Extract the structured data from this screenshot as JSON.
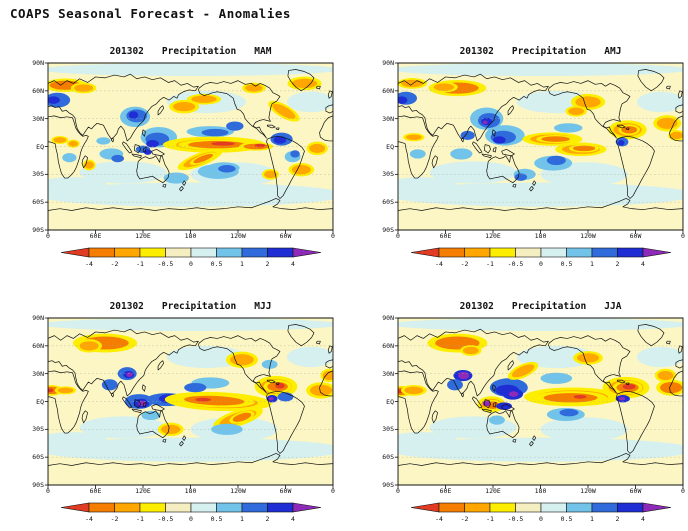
{
  "page_title": "COAPS Seasonal Forecast - Anomalies",
  "panels": [
    {
      "year_month": "201302",
      "variable": "Precipitation",
      "season": "MAM"
    },
    {
      "year_month": "201302",
      "variable": "Precipitation",
      "season": "AMJ"
    },
    {
      "year_month": "201302",
      "variable": "Precipitation",
      "season": "MJJ"
    },
    {
      "year_month": "201302",
      "variable": "Precipitation",
      "season": "JJA"
    }
  ],
  "axes": {
    "lat_labels": [
      "90N",
      "60N",
      "30N",
      "EQ",
      "30S",
      "60S",
      "90S"
    ],
    "lon_labels": [
      "0",
      "60E",
      "120E",
      "180",
      "120W",
      "60W",
      "0"
    ]
  },
  "colorbar": {
    "tick_labels": [
      "-4",
      "-2",
      "-1",
      "-0.5",
      "0",
      "0.5",
      "1",
      "2",
      "4"
    ],
    "segment_colors": [
      "#f57d00",
      "#ffa700",
      "#fdee00",
      "#f4eec0",
      "#d5f0ee",
      "#72c3ea",
      "#2f6bdb",
      "#1f2ed4"
    ],
    "left_arrow_color": "#e23b24",
    "right_arrow_color": "#8d2bb8",
    "level_colors": {
      "-4": "#e23b24",
      "-2": "#f57d00",
      "-1": "#ffa700",
      "-0.5": "#fdee00",
      "0-": "#fbf6c3",
      "0+": "#d5f0ee",
      "0.5": "#72c3ea",
      "1": "#2f6bdb",
      "2": "#1f2ed4",
      "4": "#8d2bb8"
    },
    "background_color": "#fbf6c3"
  },
  "chart_data": [
    {
      "type": "heatmap",
      "title": "201302 Precipitation MAM",
      "season": "MAM",
      "lon_range": [
        0,
        360
      ],
      "lat_range": [
        -90,
        90
      ],
      "contour_levels": [
        -4,
        -2,
        -1,
        -0.5,
        0,
        0.5,
        1,
        2,
        4
      ],
      "anomaly_blobs": [
        [
          180,
          -52,
          195,
          13,
          "0+"
        ],
        [
          235,
          -30,
          55,
          13,
          "0+"
        ],
        [
          95,
          -28,
          55,
          12,
          "0+"
        ],
        [
          30,
          -42,
          45,
          9,
          "0+"
        ],
        [
          200,
          48,
          50,
          12,
          "0+"
        ],
        [
          332,
          48,
          30,
          11,
          "0+"
        ],
        [
          180,
          83,
          190,
          7,
          "0+"
        ],
        [
          300,
          -52,
          60,
          8,
          "0+"
        ],
        [
          215,
          -27,
          26,
          8,
          "0.5"
        ],
        [
          162,
          -34,
          16,
          6,
          "0.5"
        ],
        [
          12,
          50,
          16,
          8,
          "1"
        ],
        [
          7,
          50,
          8,
          4,
          "2"
        ],
        [
          22,
          66,
          20,
          5,
          "-2"
        ],
        [
          45,
          63,
          12,
          4,
          "-1"
        ],
        [
          110,
          32,
          19,
          11,
          "0.5"
        ],
        [
          112,
          33,
          13,
          7,
          "1"
        ],
        [
          108,
          34,
          6,
          4,
          "2"
        ],
        [
          140,
          10,
          23,
          11,
          "0.5"
        ],
        [
          138,
          8,
          15,
          7,
          "1"
        ],
        [
          132,
          3,
          8,
          4,
          "2"
        ],
        [
          120,
          -3,
          9,
          4,
          "1"
        ],
        [
          126,
          -6,
          5,
          3,
          "2"
        ],
        [
          80,
          -8,
          15,
          6,
          "0.5"
        ],
        [
          88,
          -13,
          8,
          4,
          "1"
        ],
        [
          70,
          6,
          9,
          4,
          "0.5"
        ],
        [
          205,
          16,
          30,
          6,
          "0.5"
        ],
        [
          211,
          15,
          17,
          4,
          "1"
        ],
        [
          236,
          22,
          11,
          5,
          "1"
        ],
        [
          222,
          -23,
          20,
          6,
          "0.5"
        ],
        [
          226,
          -24,
          11,
          4,
          "1"
        ],
        [
          210,
          2,
          48,
          6,
          "-1"
        ],
        [
          213,
          2,
          36,
          4,
          "-2"
        ],
        [
          221,
          3,
          15,
          2,
          "-4"
        ],
        [
          263,
          0,
          16,
          3,
          "-2"
        ],
        [
          268,
          1,
          7,
          2,
          "-4"
        ],
        [
          192,
          -14,
          22,
          5,
          "-1",
          -18
        ],
        [
          196,
          -13,
          13,
          3,
          "-2",
          -18
        ],
        [
          172,
          43,
          14,
          5,
          "-1"
        ],
        [
          197,
          51,
          16,
          4,
          "-1"
        ],
        [
          298,
          38,
          16,
          5,
          "-1",
          25
        ],
        [
          324,
          68,
          16,
          5,
          "-1"
        ],
        [
          260,
          63,
          11,
          4,
          "-1"
        ],
        [
          295,
          8,
          14,
          7,
          "1"
        ],
        [
          293,
          7,
          8,
          4,
          "2"
        ],
        [
          309,
          -11,
          10,
          6,
          "0.5"
        ],
        [
          312,
          -8,
          6,
          4,
          "1"
        ],
        [
          320,
          -25,
          12,
          5,
          "-1"
        ],
        [
          281,
          -30,
          8,
          4,
          "-1"
        ],
        [
          340,
          -2,
          10,
          5,
          "-1"
        ],
        [
          15,
          7,
          8,
          3,
          "-1"
        ],
        [
          32,
          3,
          6,
          3,
          "-1"
        ],
        [
          27,
          -12,
          9,
          5,
          "0.5"
        ],
        [
          52,
          -20,
          6,
          4,
          "-1"
        ]
      ]
    },
    {
      "type": "heatmap",
      "title": "201302 Precipitation AMJ",
      "season": "AMJ",
      "lon_range": [
        0,
        360
      ],
      "lat_range": [
        -90,
        90
      ],
      "contour_levels": [
        -4,
        -2,
        -1,
        -0.5,
        0,
        0.5,
        1,
        2,
        4
      ],
      "anomaly_blobs": [
        [
          180,
          -52,
          195,
          13,
          "0+"
        ],
        [
          235,
          -30,
          55,
          13,
          "0+"
        ],
        [
          95,
          -28,
          55,
          12,
          "0+"
        ],
        [
          30,
          -42,
          45,
          9,
          "0+"
        ],
        [
          200,
          48,
          50,
          12,
          "0+"
        ],
        [
          332,
          48,
          30,
          11,
          "0+"
        ],
        [
          180,
          83,
          190,
          7,
          "0+"
        ],
        [
          300,
          -52,
          60,
          8,
          "0+"
        ],
        [
          75,
          63,
          27,
          6,
          "-2"
        ],
        [
          58,
          64,
          13,
          4,
          "-1"
        ],
        [
          18,
          68,
          14,
          4,
          "-1"
        ],
        [
          10,
          52,
          14,
          7,
          "1"
        ],
        [
          5,
          50,
          7,
          4,
          "2"
        ],
        [
          112,
          30,
          21,
          12,
          "0.5"
        ],
        [
          115,
          28,
          14,
          8,
          "1"
        ],
        [
          112,
          27,
          7,
          4,
          "2"
        ],
        [
          110,
          26,
          3,
          2,
          "4"
        ],
        [
          135,
          12,
          25,
          11,
          "0.5"
        ],
        [
          133,
          10,
          16,
          7,
          "1"
        ],
        [
          128,
          7,
          8,
          4,
          "2"
        ],
        [
          88,
          12,
          9,
          5,
          "1"
        ],
        [
          80,
          -8,
          14,
          6,
          "0.5"
        ],
        [
          195,
          8,
          28,
          5,
          "-1"
        ],
        [
          199,
          8,
          18,
          3,
          "-2"
        ],
        [
          231,
          -3,
          24,
          5,
          "-1"
        ],
        [
          235,
          -2,
          14,
          3,
          "-2"
        ],
        [
          196,
          -18,
          24,
          8,
          "0.5"
        ],
        [
          200,
          -15,
          12,
          5,
          "1"
        ],
        [
          215,
          20,
          18,
          5,
          "0.5"
        ],
        [
          240,
          48,
          16,
          6,
          "-1"
        ],
        [
          225,
          38,
          10,
          4,
          "-1"
        ],
        [
          290,
          18,
          18,
          7,
          "-1"
        ],
        [
          292,
          18,
          10,
          4,
          "-2"
        ],
        [
          283,
          5,
          8,
          5,
          "1"
        ],
        [
          282,
          4,
          4,
          3,
          "2"
        ],
        [
          340,
          25,
          13,
          6,
          "-1"
        ],
        [
          352,
          12,
          8,
          4,
          "-1"
        ],
        [
          20,
          10,
          10,
          3,
          "-1"
        ],
        [
          25,
          -8,
          10,
          5,
          "0.5"
        ],
        [
          160,
          -30,
          14,
          6,
          "0.5"
        ],
        [
          155,
          -33,
          8,
          4,
          "1"
        ]
      ]
    },
    {
      "type": "heatmap",
      "title": "201302 Precipitation MJJ",
      "season": "MJJ",
      "lon_range": [
        0,
        360
      ],
      "lat_range": [
        -90,
        90
      ],
      "contour_levels": [
        -4,
        -2,
        -1,
        -0.5,
        0,
        0.5,
        1,
        2,
        4
      ],
      "anomaly_blobs": [
        [
          180,
          -52,
          195,
          13,
          "0+"
        ],
        [
          235,
          -30,
          55,
          13,
          "0+"
        ],
        [
          95,
          -28,
          55,
          12,
          "0+"
        ],
        [
          30,
          -42,
          45,
          9,
          "0+"
        ],
        [
          200,
          48,
          50,
          12,
          "0+"
        ],
        [
          332,
          48,
          30,
          11,
          "0+"
        ],
        [
          180,
          83,
          190,
          7,
          "0+"
        ],
        [
          300,
          -52,
          60,
          8,
          "0+"
        ],
        [
          72,
          63,
          30,
          7,
          "-2"
        ],
        [
          52,
          60,
          12,
          5,
          "-1"
        ],
        [
          100,
          30,
          12,
          7,
          "1"
        ],
        [
          102,
          29,
          7,
          4,
          "2"
        ],
        [
          103,
          29,
          4,
          2.5,
          "4"
        ],
        [
          78,
          18,
          10,
          6,
          "1"
        ],
        [
          115,
          0,
          18,
          8,
          "1"
        ],
        [
          118,
          -2,
          10,
          5,
          "2"
        ],
        [
          119,
          -2,
          5,
          3,
          "4"
        ],
        [
          150,
          2,
          26,
          7,
          "1"
        ],
        [
          155,
          3,
          15,
          5,
          "2"
        ],
        [
          215,
          0,
          50,
          7,
          "-1",
          2
        ],
        [
          210,
          1,
          38,
          5,
          "-2",
          2
        ],
        [
          196,
          2,
          10,
          2,
          "-4"
        ],
        [
          240,
          -18,
          24,
          6,
          "-1",
          -15
        ],
        [
          245,
          -17,
          12,
          4,
          "-2",
          -15
        ],
        [
          205,
          20,
          24,
          6,
          "0.5"
        ],
        [
          186,
          15,
          14,
          5,
          "1"
        ],
        [
          226,
          -30,
          20,
          6,
          "0.5"
        ],
        [
          288,
          16,
          20,
          8,
          "-1"
        ],
        [
          290,
          16,
          13,
          5,
          "-2"
        ],
        [
          293,
          17,
          6,
          3,
          "-4"
        ],
        [
          283,
          3,
          7,
          4,
          "2"
        ],
        [
          282,
          3,
          3,
          2,
          "4"
        ],
        [
          300,
          5,
          10,
          5,
          "1"
        ],
        [
          345,
          12,
          14,
          6,
          "-1"
        ],
        [
          355,
          28,
          8,
          5,
          "-1"
        ],
        [
          5,
          12,
          10,
          4,
          "-2"
        ],
        [
          3,
          12,
          4,
          2,
          "-4"
        ],
        [
          22,
          12,
          10,
          3,
          "-1"
        ],
        [
          130,
          -15,
          12,
          5,
          "0.5"
        ],
        [
          155,
          -30,
          12,
          5,
          "-1"
        ],
        [
          245,
          45,
          15,
          6,
          "-1"
        ],
        [
          280,
          40,
          10,
          5,
          "0.5"
        ]
      ]
    },
    {
      "type": "heatmap",
      "title": "201302 Precipitation JJA",
      "season": "JJA",
      "lon_range": [
        0,
        360
      ],
      "lat_range": [
        -90,
        90
      ],
      "contour_levels": [
        -4,
        -2,
        -1,
        -0.5,
        0,
        0.5,
        1,
        2,
        4
      ],
      "anomaly_blobs": [
        [
          180,
          -52,
          195,
          13,
          "0+"
        ],
        [
          235,
          -30,
          55,
          13,
          "0+"
        ],
        [
          95,
          -28,
          55,
          12,
          "0+"
        ],
        [
          30,
          -42,
          45,
          9,
          "0+"
        ],
        [
          200,
          48,
          50,
          12,
          "0+"
        ],
        [
          332,
          48,
          30,
          11,
          "0+"
        ],
        [
          180,
          83,
          190,
          7,
          "0+"
        ],
        [
          300,
          -52,
          60,
          8,
          "0+"
        ],
        [
          75,
          63,
          28,
          7,
          "-2"
        ],
        [
          92,
          55,
          10,
          4,
          "-1"
        ],
        [
          82,
          28,
          12,
          6,
          "2"
        ],
        [
          83,
          28,
          7,
          4,
          "4"
        ],
        [
          72,
          18,
          10,
          6,
          "1"
        ],
        [
          140,
          15,
          24,
          10,
          "1"
        ],
        [
          138,
          12,
          15,
          6,
          "2"
        ],
        [
          145,
          8,
          13,
          6,
          "2"
        ],
        [
          146,
          8,
          6,
          3,
          "4"
        ],
        [
          118,
          -3,
          13,
          6,
          "-1"
        ],
        [
          120,
          -4,
          8,
          4,
          "-2"
        ],
        [
          112,
          -2,
          5,
          3,
          "4"
        ],
        [
          134,
          -5,
          10,
          4,
          "2"
        ],
        [
          220,
          5,
          45,
          7,
          "-1"
        ],
        [
          218,
          4,
          34,
          5,
          "-2"
        ],
        [
          230,
          5,
          8,
          2,
          "-4"
        ],
        [
          200,
          25,
          20,
          6,
          "0.5"
        ],
        [
          212,
          -14,
          24,
          7,
          "0.5"
        ],
        [
          216,
          -12,
          12,
          4,
          "1"
        ],
        [
          288,
          15,
          22,
          8,
          "-1"
        ],
        [
          290,
          15,
          14,
          5,
          "-2"
        ],
        [
          292,
          16,
          8,
          3,
          "-4"
        ],
        [
          284,
          3,
          9,
          4,
          "2"
        ],
        [
          283,
          3,
          4,
          2,
          "4"
        ],
        [
          345,
          15,
          14,
          6,
          "-2"
        ],
        [
          338,
          28,
          10,
          5,
          "-1"
        ],
        [
          4,
          11,
          10,
          4,
          "-2"
        ],
        [
          3,
          11,
          5,
          2,
          "-4"
        ],
        [
          20,
          12,
          12,
          4,
          "-1"
        ],
        [
          158,
          33,
          15,
          5,
          "-1",
          -20
        ],
        [
          125,
          -20,
          10,
          5,
          "0.5"
        ],
        [
          240,
          47,
          14,
          5,
          "-1"
        ]
      ]
    }
  ]
}
